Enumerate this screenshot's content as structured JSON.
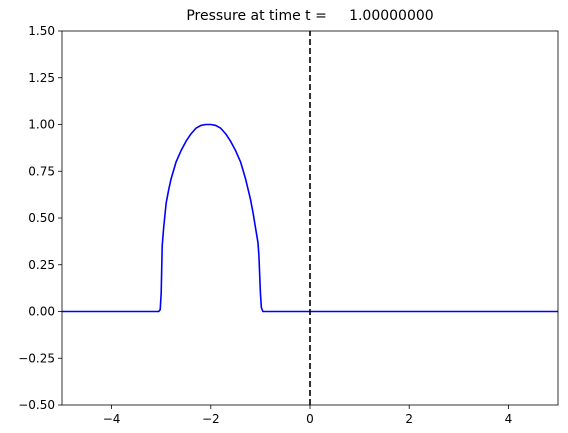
{
  "chart_data": {
    "type": "line",
    "title": "Pressure at time t =     1.00000000",
    "xlabel": "",
    "ylabel": "",
    "xlim": [
      -5,
      5
    ],
    "ylim": [
      -0.5,
      1.5
    ],
    "xticks": [
      -4,
      -2,
      0,
      2,
      4
    ],
    "xtick_labels": [
      "−4",
      "−2",
      "0",
      "2",
      "4"
    ],
    "yticks": [
      -0.5,
      -0.25,
      0.0,
      0.25,
      0.5,
      0.75,
      1.0,
      1.25,
      1.5
    ],
    "ytick_labels": [
      "−0.50",
      "−0.25",
      "0.00",
      "0.25",
      "0.50",
      "0.75",
      "1.00",
      "1.25",
      "1.50"
    ],
    "grid": false,
    "series": [
      {
        "color": "#0000ff",
        "style": "solid",
        "x": [
          -5.0,
          -3.05,
          -3.02,
          -3.0,
          -2.98,
          -2.95,
          -2.9,
          -2.85,
          -2.8,
          -2.7,
          -2.6,
          -2.5,
          -2.4,
          -2.3,
          -2.2,
          -2.1,
          -2.0,
          -1.9,
          -1.8,
          -1.7,
          -1.6,
          -1.5,
          -1.4,
          -1.3,
          -1.2,
          -1.15,
          -1.1,
          -1.05,
          -1.03,
          -1.0,
          -0.98,
          -0.95,
          -0.92,
          5.0
        ],
        "y": [
          0.0,
          0.0,
          0.01,
          0.1,
          0.35,
          0.45,
          0.58,
          0.65,
          0.71,
          0.8,
          0.86,
          0.91,
          0.95,
          0.98,
          0.995,
          1.0,
          1.0,
          0.995,
          0.98,
          0.95,
          0.91,
          0.86,
          0.8,
          0.71,
          0.6,
          0.53,
          0.45,
          0.37,
          0.3,
          0.1,
          0.02,
          0.0,
          0.0,
          0.0
        ]
      },
      {
        "color": "#000000",
        "style": "dashed",
        "x": [
          0.0,
          0.0
        ],
        "y": [
          -0.5,
          1.5
        ]
      }
    ]
  }
}
